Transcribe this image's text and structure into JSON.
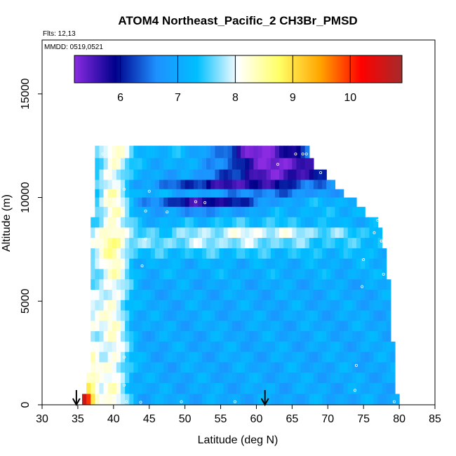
{
  "chart_data": {
    "type": "heatmap",
    "title": "ATOM4 Northeast_Pacific_2 CH3Br_PMSD",
    "flights_label": "Flts: 12,13",
    "mmdd_label": "MMDD: 0519,0521",
    "xlabel": "Latitude (deg N)",
    "ylabel": "Altitude (m)",
    "xlim": [
      30,
      85
    ],
    "ylim": [
      0,
      17600
    ],
    "x_ticks": [
      30,
      35,
      40,
      45,
      50,
      55,
      60,
      65,
      70,
      75,
      80,
      85
    ],
    "y_ticks": [
      0,
      5000,
      10000,
      15000
    ],
    "colorbar": {
      "range": [
        5.2,
        10.9
      ],
      "ticks": [
        6,
        7,
        8,
        9,
        10
      ],
      "placement": "top inside plot"
    },
    "arrows_latitude": [
      34.8,
      61.2
    ],
    "grid": false,
    "legend": "colorbar",
    "colormap": [
      "#8a2be2",
      "#00008b",
      "#1e90ff",
      "#00bfff",
      "#ffffff",
      "#ffff66",
      "#ffa500",
      "#ff0000",
      "#a52a2a"
    ],
    "layers": [
      {
        "alt": 12200,
        "lat_max": 67.0,
        "base": 7.2,
        "hot": 0.0,
        "dip": -2.0,
        "dip_lat": 61.0,
        "dip_w": 6.0
      },
      {
        "alt": 11600,
        "lat_max": 68.0,
        "base": 7.1,
        "hot": 0.0,
        "dip": -1.9,
        "dip_lat": 63.0,
        "dip_w": 7.0
      },
      {
        "alt": 11100,
        "lat_max": 69.5,
        "base": 7.0,
        "hot": 0.0,
        "dip": -1.6,
        "dip_lat": 63.0,
        "dip_w": 8.0
      },
      {
        "alt": 10600,
        "lat_max": 71.0,
        "base": 7.0,
        "hot": 0.0,
        "dip": -1.4,
        "dip_lat": 58.0,
        "dip_w": 10.0
      },
      {
        "alt": 10200,
        "lat_max": 72.0,
        "base": 7.1,
        "hot": 0.0,
        "dip": -0.6,
        "dip_lat": 62.0,
        "dip_w": 9.0
      },
      {
        "alt": 9800,
        "lat_max": 73.5,
        "base": 7.2,
        "hot": 0.0,
        "dip": -1.5,
        "dip_lat": 53.0,
        "dip_w": 8.0
      },
      {
        "alt": 9300,
        "lat_max": 75.0,
        "base": 7.2,
        "hot": 0.1,
        "dip": -0.5,
        "dip_lat": 52.0,
        "dip_w": 8.0
      },
      {
        "alt": 8800,
        "lat_max": 76.5,
        "base": 7.1,
        "hot": 0.2,
        "dip": 0.3,
        "dip_lat": 60.0,
        "dip_w": 10.0
      },
      {
        "alt": 8300,
        "lat_max": 77.0,
        "base": 7.3,
        "hot": 0.2,
        "dip": 0.7,
        "dip_lat": 60.0,
        "dip_w": 12.0
      },
      {
        "alt": 7800,
        "lat_max": 77.5,
        "base": 7.3,
        "hot": 0.3,
        "dip": 0.5,
        "dip_lat": 55.0,
        "dip_w": 14.0
      },
      {
        "alt": 7300,
        "lat_max": 77.8,
        "base": 7.2,
        "hot": 0.4,
        "dip": 0.2,
        "dip_lat": 55.0,
        "dip_w": 14.0
      },
      {
        "alt": 6800,
        "lat_max": 78.0,
        "base": 7.1,
        "hot": 0.4,
        "dip": 0.0,
        "dip_lat": 55.0,
        "dip_w": 10.0
      },
      {
        "alt": 6300,
        "lat_max": 78.0,
        "base": 7.1,
        "hot": 0.4,
        "dip": 0.0,
        "dip_lat": 55.0,
        "dip_w": 10.0
      },
      {
        "alt": 5800,
        "lat_max": 78.2,
        "base": 7.0,
        "hot": 0.5,
        "dip": 0.0,
        "dip_lat": 55.0,
        "dip_w": 10.0
      },
      {
        "alt": 5300,
        "lat_max": 78.2,
        "base": 7.0,
        "hot": 0.6,
        "dip": 0.0,
        "dip_lat": 55.0,
        "dip_w": 10.0
      },
      {
        "alt": 4800,
        "lat_max": 78.3,
        "base": 7.0,
        "hot": 0.7,
        "dip": 0.0,
        "dip_lat": 55.0,
        "dip_w": 10.0
      },
      {
        "alt": 4300,
        "lat_max": 78.4,
        "base": 7.0,
        "hot": 0.8,
        "dip": 0.0,
        "dip_lat": 55.0,
        "dip_w": 10.0
      },
      {
        "alt": 3800,
        "lat_max": 78.5,
        "base": 7.0,
        "hot": 0.9,
        "dip": 0.0,
        "dip_lat": 55.0,
        "dip_w": 10.0
      },
      {
        "alt": 3300,
        "lat_max": 78.6,
        "base": 7.0,
        "hot": 0.9,
        "dip": 0.0,
        "dip_lat": 55.0,
        "dip_w": 10.0
      },
      {
        "alt": 2800,
        "lat_max": 78.8,
        "base": 7.0,
        "hot": 1.0,
        "dip": 0.0,
        "dip_lat": 55.0,
        "dip_w": 10.0
      },
      {
        "alt": 2300,
        "lat_max": 79.0,
        "base": 7.0,
        "hot": 1.1,
        "dip": 0.0,
        "dip_lat": 55.0,
        "dip_w": 10.0
      },
      {
        "alt": 1800,
        "lat_max": 79.0,
        "base": 7.0,
        "hot": 1.2,
        "dip": 0.0,
        "dip_lat": 55.0,
        "dip_w": 10.0
      },
      {
        "alt": 1300,
        "lat_max": 79.2,
        "base": 7.0,
        "hot": 1.3,
        "dip": 0.0,
        "dip_lat": 55.0,
        "dip_w": 10.0
      },
      {
        "alt": 800,
        "lat_max": 79.3,
        "base": 7.0,
        "hot": 1.8,
        "dip": 0.0,
        "dip_lat": 55.0,
        "dip_w": 10.0
      },
      {
        "alt": 250,
        "lat_max": 79.5,
        "base": 7.0,
        "hot": 3.6,
        "dip": 0.0,
        "dip_lat": 55.0,
        "dip_w": 10.0
      }
    ],
    "sample_points": [
      [
        38.5,
        12100
      ],
      [
        63.0,
        11600
      ],
      [
        65.5,
        12100
      ],
      [
        66.5,
        12100
      ],
      [
        67.0,
        12100
      ],
      [
        69.0,
        11200
      ],
      [
        41.5,
        10400
      ],
      [
        45.0,
        10300
      ],
      [
        51.5,
        9800
      ],
      [
        52.8,
        9750
      ],
      [
        44.5,
        9350
      ],
      [
        47.5,
        9300
      ],
      [
        77.0,
        8900
      ],
      [
        76.5,
        8300
      ],
      [
        44.5,
        8000
      ],
      [
        60.0,
        8200
      ],
      [
        77.5,
        7900
      ],
      [
        75.0,
        7000
      ],
      [
        44.0,
        6700
      ],
      [
        77.8,
        6300
      ],
      [
        74.8,
        5700
      ],
      [
        41.5,
        2300
      ],
      [
        74.0,
        1900
      ],
      [
        37.0,
        1300
      ],
      [
        41.5,
        950
      ],
      [
        73.8,
        700
      ],
      [
        38.2,
        200
      ],
      [
        41.8,
        150
      ],
      [
        43.8,
        120
      ],
      [
        49.5,
        150
      ],
      [
        57.0,
        150
      ],
      [
        79.3,
        150
      ]
    ]
  }
}
